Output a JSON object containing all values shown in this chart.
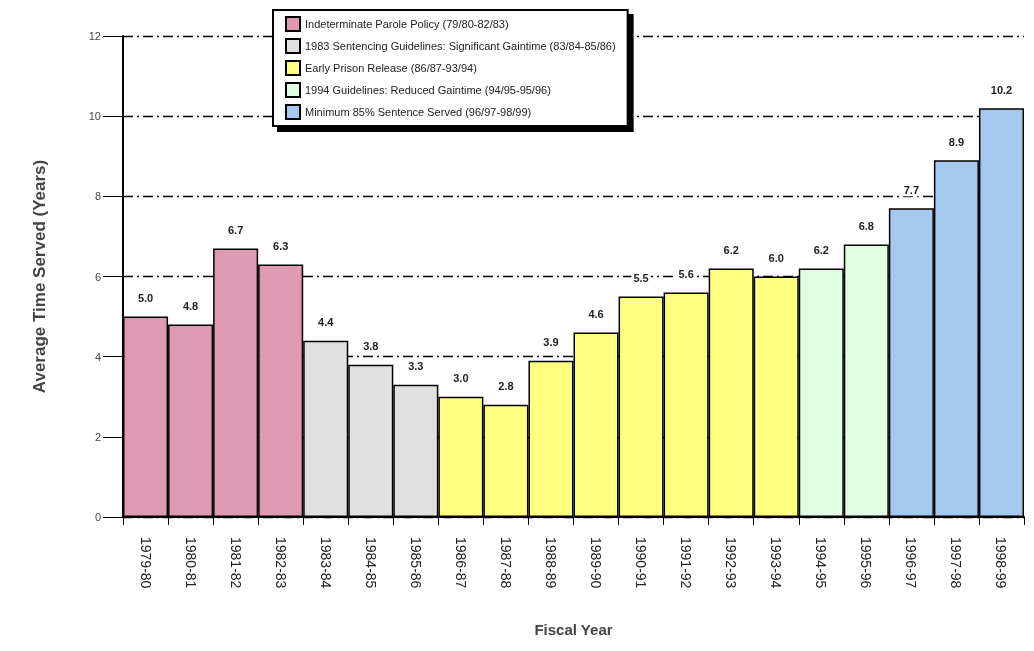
{
  "chart_data": {
    "type": "bar",
    "stacked": true,
    "xlabel": "Fiscal Year",
    "ylabel": "Average Time Served (Years)",
    "categories": [
      "1979-80",
      "1980-81",
      "1981-82",
      "1982-83",
      "1983-84",
      "1984-85",
      "1985-86",
      "1986-87",
      "1987-88",
      "1988-89",
      "1989-90",
      "1990-91",
      "1991-92",
      "1992-93",
      "1993-94",
      "1994-95",
      "1995-96",
      "1996-97",
      "1997-98",
      "1998-99"
    ],
    "series": [
      {
        "name": "Indeterminate Parole Policy (79/80-82/83)",
        "color": "#dd9ab2",
        "values": [
          5.0,
          4.8,
          6.7,
          6.3,
          null,
          null,
          null,
          null,
          null,
          null,
          null,
          null,
          null,
          null,
          null,
          null,
          null,
          null,
          null,
          null
        ],
        "value_labels": [
          "5.0",
          "4.8",
          "6.7",
          "6.3",
          null,
          null,
          null,
          null,
          null,
          null,
          null,
          null,
          null,
          null,
          null,
          null,
          null,
          null,
          null,
          null
        ]
      },
      {
        "name": "1983 Sentencing Guidelines: Significant Gaintime (83/84-85/86)",
        "color": "#e0e0e0",
        "values": [
          null,
          null,
          null,
          null,
          4.4,
          3.8,
          3.3,
          null,
          null,
          null,
          null,
          null,
          null,
          null,
          null,
          null,
          null,
          null,
          null,
          null
        ],
        "value_labels": [
          null,
          null,
          null,
          null,
          "4.4",
          "3.8",
          "3.3",
          null,
          null,
          null,
          null,
          null,
          null,
          null,
          null,
          null,
          null,
          null,
          null,
          null
        ]
      },
      {
        "name": "Early Prison Release (86/87-93/94)",
        "color": "#ffff80",
        "values": [
          null,
          null,
          null,
          null,
          null,
          null,
          null,
          3.0,
          2.8,
          3.9,
          4.6,
          5.5,
          5.6,
          6.2,
          6.0,
          null,
          null,
          null,
          null,
          null
        ],
        "value_labels": [
          null,
          null,
          null,
          null,
          null,
          null,
          null,
          "3.0",
          "2.8",
          "3.9",
          "4.6",
          "5.5",
          "5.6",
          "6.2",
          "6.0",
          null,
          null,
          null,
          null,
          null
        ]
      },
      {
        "name": "1994 Guidelines: Reduced Gaintime (94/95-95/96)",
        "color": "#e0ffe0",
        "values": [
          null,
          null,
          null,
          null,
          null,
          null,
          null,
          null,
          null,
          null,
          null,
          null,
          null,
          null,
          null,
          6.2,
          6.8,
          null,
          null,
          null
        ],
        "value_labels": [
          null,
          null,
          null,
          null,
          null,
          null,
          null,
          null,
          null,
          null,
          null,
          null,
          null,
          null,
          null,
          "6.2",
          "6.8",
          null,
          null,
          null
        ]
      },
      {
        "name": "Minimum 85% Sentence Served (96/97-98/99)",
        "color": "#a6c8ee",
        "values": [
          null,
          null,
          null,
          null,
          null,
          null,
          null,
          null,
          null,
          null,
          null,
          null,
          null,
          null,
          null,
          null,
          null,
          7.7,
          8.9,
          10.2
        ],
        "value_labels": [
          null,
          null,
          null,
          null,
          null,
          null,
          null,
          null,
          null,
          null,
          null,
          null,
          null,
          null,
          null,
          null,
          null,
          "7.7",
          "8.9",
          "10.2"
        ]
      }
    ],
    "ylim": [
      0,
      12
    ],
    "yticks": [
      0,
      2,
      4,
      6,
      8,
      10,
      12
    ],
    "grid": "y",
    "legend": "top"
  }
}
